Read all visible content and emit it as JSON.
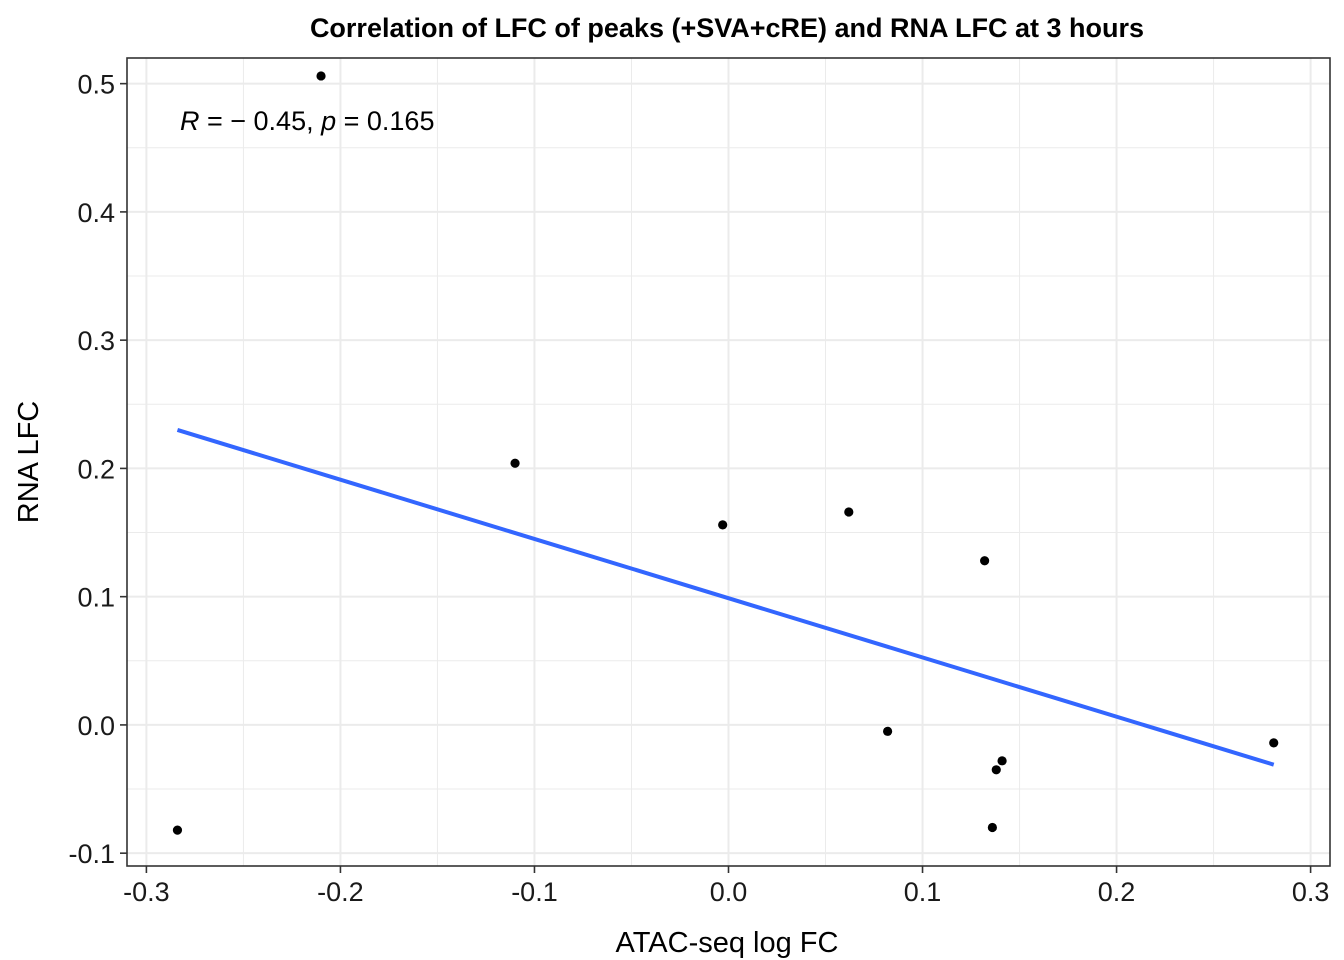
{
  "chart_data": {
    "type": "scatter",
    "title": "Correlation of LFC of peaks (+SVA+cRE) and RNA LFC at 3 hours",
    "xlabel": "ATAC-seq log FC",
    "ylabel": "RNA LFC",
    "xlim": [
      -0.31,
      0.31
    ],
    "ylim": [
      -0.11,
      0.52
    ],
    "x_ticks": [
      -0.3,
      -0.2,
      -0.1,
      0.0,
      0.1,
      0.2,
      0.3
    ],
    "x_tick_labels": [
      "-0.3",
      "-0.2",
      "-0.1",
      "0.0",
      "0.1",
      "0.2",
      "0.3"
    ],
    "y_ticks": [
      -0.1,
      0.0,
      0.1,
      0.2,
      0.3,
      0.4,
      0.5
    ],
    "y_tick_labels": [
      "-0.1",
      "0.0",
      "0.1",
      "0.2",
      "0.3",
      "0.4",
      "0.5"
    ],
    "grid": true,
    "points": [
      {
        "x": -0.284,
        "y": -0.082
      },
      {
        "x": -0.21,
        "y": 0.506
      },
      {
        "x": -0.11,
        "y": 0.204
      },
      {
        "x": -0.003,
        "y": 0.156
      },
      {
        "x": 0.062,
        "y": 0.166
      },
      {
        "x": 0.082,
        "y": -0.005
      },
      {
        "x": 0.132,
        "y": 0.128
      },
      {
        "x": 0.136,
        "y": -0.08
      },
      {
        "x": 0.138,
        "y": -0.035
      },
      {
        "x": 0.141,
        "y": -0.028
      },
      {
        "x": 0.281,
        "y": -0.014
      }
    ],
    "regression_line": {
      "x": [
        -0.284,
        0.281
      ],
      "y": [
        0.23,
        -0.031
      ]
    },
    "annotation": {
      "R_label": "R",
      "equals_R": " = − 0.45, ",
      "p_label": "p",
      "equals_p": " = 0.165"
    },
    "colors": {
      "points": "#000000",
      "line": "#3366ff",
      "grid": "#ebebeb",
      "panel_border": "#333333"
    }
  }
}
